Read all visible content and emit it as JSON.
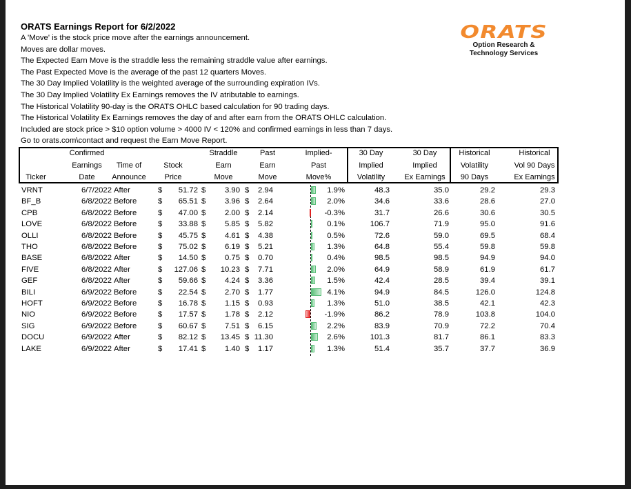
{
  "report": {
    "title": "ORATS Earnings Report for 6/2/2022",
    "notes": [
      "A 'Move' is the stock price move after the earnings announcement.",
      "Moves are dollar moves.",
      "The Expected Earn Move is the straddle less the remaining straddle value after earnings.",
      "The Past Expected Move is the average of the past 12 quarters Moves.",
      "The 30 Day Implied Volatility is the weighted average of the surrounding expiration IVs.",
      "The 30 Day Implied Volatility Ex Earnings removes the IV atributable to earnings.",
      "The Historical Volatility 90-day is the ORATS OHLC based calculation for 90 trading days.",
      "The Historical Volatility Ex Earnings removes the day of and after earn from the ORATS OHLC calculation.",
      "Included are stock price > $10 option volume > 4000 IV < 120% and confirmed earnings in less than 7 days.",
      "Go to orats.com\\contact and request the Earn Move Report."
    ]
  },
  "logo": {
    "mark": "ORATS",
    "line1": "Option Research &",
    "line2": "Technology Services",
    "color": "#f28a2e"
  },
  "colors": {
    "positive_bar": "#5cbf7a",
    "negative_bar": "#e02020"
  },
  "table": {
    "headers": [
      [
        "",
        "",
        "Ticker"
      ],
      [
        "Confirmed",
        "Earnings",
        "Date"
      ],
      [
        "",
        "Time of",
        "Announce"
      ],
      [
        "",
        "Stock",
        "Price"
      ],
      [
        "Straddle",
        "Earn",
        "Move"
      ],
      [
        "Past",
        "Earn",
        "Move"
      ],
      [
        "Implied-",
        "Past",
        "Move%"
      ],
      [
        "30 Day",
        "Implied",
        "Volatility"
      ],
      [
        "30 Day",
        "Implied",
        "Ex Earnings"
      ],
      [
        "Historical",
        "Volatility",
        "90 Days"
      ],
      [
        "Historical",
        "Vol 90 Days",
        "Ex Earnings"
      ]
    ],
    "currency_symbol": "$",
    "rows": [
      [
        "VRNT",
        "6/7/2022",
        "After",
        "51.72",
        "3.90",
        "2.94",
        "1.9%",
        "48.3",
        "35.0",
        "29.2",
        "29.3"
      ],
      [
        "BF_B",
        "6/8/2022",
        "Before",
        "65.51",
        "3.96",
        "2.64",
        "2.0%",
        "34.6",
        "33.6",
        "28.6",
        "27.0"
      ],
      [
        "CPB",
        "6/8/2022",
        "Before",
        "47.00",
        "2.00",
        "2.14",
        "-0.3%",
        "31.7",
        "26.6",
        "30.6",
        "30.5"
      ],
      [
        "LOVE",
        "6/8/2022",
        "Before",
        "33.88",
        "5.85",
        "5.82",
        "0.1%",
        "106.7",
        "71.9",
        "95.0",
        "91.6"
      ],
      [
        "OLLI",
        "6/8/2022",
        "Before",
        "45.75",
        "4.61",
        "4.38",
        "0.5%",
        "72.6",
        "59.0",
        "69.5",
        "68.4"
      ],
      [
        "THO",
        "6/8/2022",
        "Before",
        "75.02",
        "6.19",
        "5.21",
        "1.3%",
        "64.8",
        "55.4",
        "59.8",
        "59.8"
      ],
      [
        "BASE",
        "6/8/2022",
        "After",
        "14.50",
        "0.75",
        "0.70",
        "0.4%",
        "98.5",
        "98.5",
        "94.9",
        "94.0"
      ],
      [
        "FIVE",
        "6/8/2022",
        "After",
        "127.06",
        "10.23",
        "7.71",
        "2.0%",
        "64.9",
        "58.9",
        "61.9",
        "61.7"
      ],
      [
        "GEF",
        "6/8/2022",
        "After",
        "59.66",
        "4.24",
        "3.36",
        "1.5%",
        "42.4",
        "28.5",
        "39.4",
        "39.1"
      ],
      [
        "BILI",
        "6/9/2022",
        "Before",
        "22.54",
        "2.70",
        "1.77",
        "4.1%",
        "94.9",
        "84.5",
        "126.0",
        "124.8"
      ],
      [
        "HOFT",
        "6/9/2022",
        "Before",
        "16.78",
        "1.15",
        "0.93",
        "1.3%",
        "51.0",
        "38.5",
        "42.1",
        "42.3"
      ],
      [
        "NIO",
        "6/9/2022",
        "Before",
        "17.57",
        "1.78",
        "2.12",
        "-1.9%",
        "86.2",
        "78.9",
        "103.8",
        "104.0"
      ],
      [
        "SIG",
        "6/9/2022",
        "Before",
        "60.67",
        "7.51",
        "6.15",
        "2.2%",
        "83.9",
        "70.9",
        "72.2",
        "70.4"
      ],
      [
        "DOCU",
        "6/9/2022",
        "After",
        "82.12",
        "13.45",
        "11.30",
        "2.6%",
        "101.3",
        "81.7",
        "86.1",
        "83.3"
      ],
      [
        "LAKE",
        "6/9/2022",
        "After",
        "17.41",
        "1.40",
        "1.17",
        "1.3%",
        "51.4",
        "35.7",
        "37.7",
        "36.9"
      ]
    ]
  }
}
